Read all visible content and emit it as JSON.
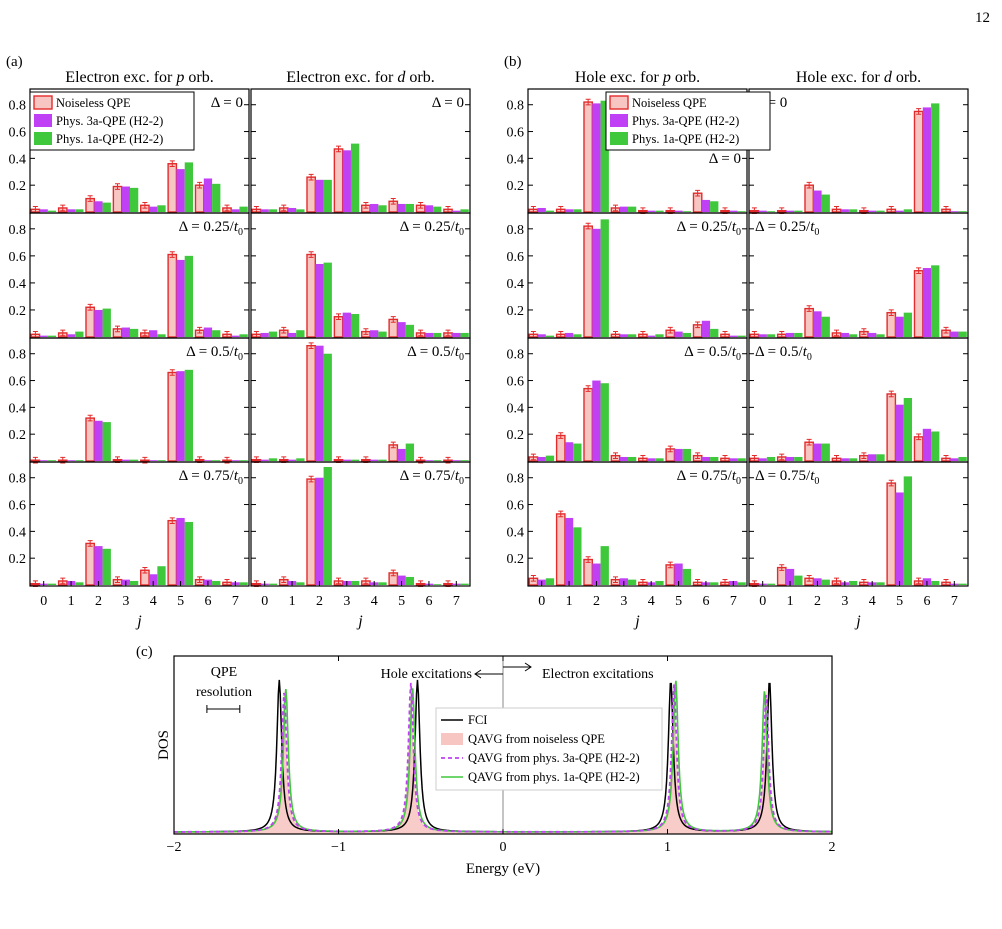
{
  "page_number": "12",
  "panel_letters": {
    "a": "(a)",
    "b": "(b)",
    "c": "(c)"
  },
  "colors": {
    "noiseless_fill": "#f7c6c2",
    "noiseless_edge": "#e32b2b",
    "phys3a": "#c040f5",
    "phys1a": "#3fc83c",
    "fci": "#000000"
  },
  "legend_bar": [
    "Noiseless QPE",
    "Phys. 3a-QPE (H2-2)",
    "Phys. 1a-QPE (H2-2)"
  ],
  "chart_data": [
    {
      "type": "bar",
      "title": "Electron exc. for p orb.",
      "xlabel": "j",
      "categories": [
        "0",
        "1",
        "2",
        "3",
        "4",
        "5",
        "6",
        "7"
      ],
      "ylim": [
        0,
        0.88
      ],
      "yticks": [
        "0.2",
        "0.4",
        "0.6",
        "0.8"
      ],
      "rows": [
        {
          "label": "Δ = 0",
          "series": [
            {
              "name": "Noiseless QPE",
              "values": [
                0.02,
                0.03,
                0.1,
                0.19,
                0.05,
                0.36,
                0.2,
                0.03
              ]
            },
            {
              "name": "Phys. 3a-QPE (H2-2)",
              "values": [
                0.02,
                0.02,
                0.08,
                0.19,
                0.04,
                0.32,
                0.25,
                0.02
              ]
            },
            {
              "name": "Phys. 1a-QPE (H2-2)",
              "values": [
                0.01,
                0.02,
                0.07,
                0.18,
                0.05,
                0.37,
                0.21,
                0.04
              ]
            }
          ]
        },
        {
          "label": "Δ = 0.25/t₀",
          "series": [
            {
              "name": "Noiseless QPE",
              "values": [
                0.02,
                0.03,
                0.22,
                0.06,
                0.03,
                0.61,
                0.05,
                0.02
              ]
            },
            {
              "name": "Phys. 3a-QPE (H2-2)",
              "values": [
                0.01,
                0.02,
                0.2,
                0.07,
                0.05,
                0.57,
                0.07,
                0.01
              ]
            },
            {
              "name": "Phys. 1a-QPE (H2-2)",
              "values": [
                0.01,
                0.04,
                0.21,
                0.06,
                0.02,
                0.6,
                0.05,
                0.02
              ]
            }
          ]
        },
        {
          "label": "Δ = 0.5/t₀",
          "series": [
            {
              "name": "Noiseless QPE",
              "values": [
                0.0,
                0.0,
                0.32,
                0.01,
                0.0,
                0.66,
                0.01,
                0.0
              ]
            },
            {
              "name": "Phys. 3a-QPE (H2-2)",
              "values": [
                0.0,
                0.0,
                0.3,
                0.01,
                0.0,
                0.67,
                0.0,
                0.0
              ]
            },
            {
              "name": "Phys. 1a-QPE (H2-2)",
              "values": [
                0.0,
                0.0,
                0.29,
                0.01,
                0.0,
                0.68,
                0.0,
                0.0
              ]
            }
          ]
        },
        {
          "label": "Δ = 0.75/t₀",
          "series": [
            {
              "name": "Noiseless QPE",
              "values": [
                0.01,
                0.03,
                0.31,
                0.04,
                0.11,
                0.48,
                0.04,
                0.02
              ]
            },
            {
              "name": "Phys. 3a-QPE (H2-2)",
              "values": [
                0.01,
                0.03,
                0.29,
                0.04,
                0.08,
                0.5,
                0.04,
                0.02
              ]
            },
            {
              "name": "Phys. 1a-QPE (H2-2)",
              "values": [
                0.01,
                0.02,
                0.27,
                0.03,
                0.14,
                0.47,
                0.03,
                0.02
              ]
            }
          ]
        }
      ]
    },
    {
      "type": "bar",
      "title": "Electron exc. for d orb.",
      "xlabel": "j",
      "categories": [
        "0",
        "1",
        "2",
        "3",
        "4",
        "5",
        "6",
        "7"
      ],
      "ylim": [
        0,
        0.88
      ],
      "yticks": [
        "0.2",
        "0.4",
        "0.6",
        "0.8"
      ],
      "rows": [
        {
          "label": "Δ = 0",
          "series": [
            {
              "name": "Noiseless QPE",
              "values": [
                0.02,
                0.03,
                0.26,
                0.47,
                0.05,
                0.08,
                0.05,
                0.02
              ]
            },
            {
              "name": "Phys. 3a-QPE (H2-2)",
              "values": [
                0.02,
                0.03,
                0.24,
                0.46,
                0.06,
                0.06,
                0.05,
                0.01
              ]
            },
            {
              "name": "Phys. 1a-QPE (H2-2)",
              "values": [
                0.02,
                0.02,
                0.24,
                0.51,
                0.05,
                0.06,
                0.04,
                0.02
              ]
            }
          ]
        },
        {
          "label": "Δ = 0.25/t₀",
          "series": [
            {
              "name": "Noiseless QPE",
              "values": [
                0.02,
                0.05,
                0.61,
                0.15,
                0.04,
                0.13,
                0.03,
                0.03
              ]
            },
            {
              "name": "Phys. 3a-QPE (H2-2)",
              "values": [
                0.03,
                0.03,
                0.54,
                0.18,
                0.05,
                0.11,
                0.03,
                0.03
              ]
            },
            {
              "name": "Phys. 1a-QPE (H2-2)",
              "values": [
                0.04,
                0.05,
                0.55,
                0.17,
                0.04,
                0.09,
                0.03,
                0.03
              ]
            }
          ]
        },
        {
          "label": "Δ = 0.5/t₀",
          "series": [
            {
              "name": "Noiseless QPE",
              "values": [
                0.01,
                0.01,
                0.86,
                0.01,
                0.01,
                0.12,
                0.0,
                0.0
              ]
            },
            {
              "name": "Phys. 3a-QPE (H2-2)",
              "values": [
                0.01,
                0.01,
                0.86,
                0.01,
                0.01,
                0.09,
                0.0,
                0.0
              ]
            },
            {
              "name": "Phys. 1a-QPE (H2-2)",
              "values": [
                0.02,
                0.02,
                0.8,
                0.01,
                0.01,
                0.13,
                0.0,
                0.0
              ]
            }
          ]
        },
        {
          "label": "Δ = 0.75/t₀",
          "series": [
            {
              "name": "Noiseless QPE",
              "values": [
                0.01,
                0.04,
                0.79,
                0.03,
                0.03,
                0.09,
                0.01,
                0.01
              ]
            },
            {
              "name": "Phys. 3a-QPE (H2-2)",
              "values": [
                0.01,
                0.03,
                0.8,
                0.03,
                0.02,
                0.07,
                0.01,
                0.01
              ]
            },
            {
              "name": "Phys. 1a-QPE (H2-2)",
              "values": [
                0.01,
                0.02,
                0.88,
                0.03,
                0.02,
                0.06,
                0.0,
                0.01
              ]
            }
          ]
        }
      ]
    },
    {
      "type": "bar",
      "title": "Hole exc. for p orb.",
      "xlabel": "j",
      "categories": [
        "0",
        "1",
        "2",
        "3",
        "4",
        "5",
        "6",
        "7"
      ],
      "ylim": [
        0,
        0.88
      ],
      "yticks": [
        "0.2",
        "0.4",
        "0.6",
        "0.8"
      ],
      "rows": [
        {
          "label": "Δ = 0",
          "series": [
            {
              "name": "Noiseless QPE",
              "values": [
                0.02,
                0.02,
                0.82,
                0.03,
                0.01,
                0.01,
                0.14,
                0.01
              ]
            },
            {
              "name": "Phys. 3a-QPE (H2-2)",
              "values": [
                0.03,
                0.02,
                0.81,
                0.04,
                0.01,
                0.01,
                0.09,
                0.01
              ]
            },
            {
              "name": "Phys. 1a-QPE (H2-2)",
              "values": [
                0.01,
                0.02,
                0.83,
                0.04,
                0.01,
                0.0,
                0.08,
                0.0
              ]
            }
          ]
        },
        {
          "label": "Δ = 0.25/t₀",
          "series": [
            {
              "name": "Noiseless QPE",
              "values": [
                0.02,
                0.02,
                0.82,
                0.02,
                0.02,
                0.05,
                0.09,
                0.02
              ]
            },
            {
              "name": "Phys. 3a-QPE (H2-2)",
              "values": [
                0.02,
                0.03,
                0.8,
                0.02,
                0.01,
                0.04,
                0.12,
                0.01
              ]
            },
            {
              "name": "Phys. 1a-QPE (H2-2)",
              "values": [
                0.01,
                0.02,
                0.87,
                0.02,
                0.02,
                0.03,
                0.06,
                0.01
              ]
            }
          ]
        },
        {
          "label": "Δ = 0.5/t₀",
          "series": [
            {
              "name": "Noiseless QPE",
              "values": [
                0.03,
                0.19,
                0.54,
                0.04,
                0.02,
                0.09,
                0.04,
                0.02
              ]
            },
            {
              "name": "Phys. 3a-QPE (H2-2)",
              "values": [
                0.03,
                0.14,
                0.6,
                0.03,
                0.02,
                0.09,
                0.03,
                0.02
              ]
            },
            {
              "name": "Phys. 1a-QPE (H2-2)",
              "values": [
                0.04,
                0.13,
                0.58,
                0.03,
                0.02,
                0.09,
                0.03,
                0.02
              ]
            }
          ]
        },
        {
          "label": "Δ = 0.75/t₀",
          "series": [
            {
              "name": "Noiseless QPE",
              "values": [
                0.05,
                0.53,
                0.19,
                0.04,
                0.02,
                0.15,
                0.02,
                0.02
              ]
            },
            {
              "name": "Phys. 3a-QPE (H2-2)",
              "values": [
                0.04,
                0.5,
                0.16,
                0.05,
                0.02,
                0.16,
                0.02,
                0.03
              ]
            },
            {
              "name": "Phys. 1a-QPE (H2-2)",
              "values": [
                0.05,
                0.43,
                0.29,
                0.04,
                0.03,
                0.12,
                0.02,
                0.02
              ]
            }
          ]
        }
      ]
    },
    {
      "type": "bar",
      "title": "Hole exc. for d orb.",
      "xlabel": "j",
      "categories": [
        "0",
        "1",
        "2",
        "3",
        "4",
        "5",
        "6",
        "7"
      ],
      "ylim": [
        0,
        0.88
      ],
      "yticks": [
        "0.2",
        "0.4",
        "0.6",
        "0.8"
      ],
      "rows": [
        {
          "label": "Δ = 0",
          "series": [
            {
              "name": "Noiseless QPE",
              "values": [
                0.01,
                0.01,
                0.2,
                0.02,
                0.01,
                0.02,
                0.75,
                0.02
              ]
            },
            {
              "name": "Phys. 3a-QPE (H2-2)",
              "values": [
                0.01,
                0.01,
                0.16,
                0.02,
                0.01,
                0.01,
                0.78,
                0.0
              ]
            },
            {
              "name": "Phys. 1a-QPE (H2-2)",
              "values": [
                0.0,
                0.01,
                0.13,
                0.02,
                0.01,
                0.02,
                0.81,
                0.0
              ]
            }
          ]
        },
        {
          "label": "Δ = 0.25/t₀",
          "series": [
            {
              "name": "Noiseless QPE",
              "values": [
                0.02,
                0.02,
                0.21,
                0.03,
                0.04,
                0.18,
                0.49,
                0.05
              ]
            },
            {
              "name": "Phys. 3a-QPE (H2-2)",
              "values": [
                0.02,
                0.03,
                0.19,
                0.03,
                0.03,
                0.15,
                0.51,
                0.04
              ]
            },
            {
              "name": "Phys. 1a-QPE (H2-2)",
              "values": [
                0.02,
                0.03,
                0.15,
                0.02,
                0.02,
                0.18,
                0.53,
                0.04
              ]
            }
          ]
        },
        {
          "label": "Δ = 0.5/t₀",
          "series": [
            {
              "name": "Noiseless QPE",
              "values": [
                0.02,
                0.03,
                0.14,
                0.02,
                0.04,
                0.5,
                0.18,
                0.02
              ]
            },
            {
              "name": "Phys. 3a-QPE (H2-2)",
              "values": [
                0.02,
                0.03,
                0.13,
                0.02,
                0.05,
                0.42,
                0.24,
                0.02
              ]
            },
            {
              "name": "Phys. 1a-QPE (H2-2)",
              "values": [
                0.03,
                0.03,
                0.13,
                0.02,
                0.05,
                0.47,
                0.22,
                0.03
              ]
            }
          ]
        },
        {
          "label": "Δ = 0.75/t₀",
          "series": [
            {
              "name": "Noiseless QPE",
              "values": [
                0.01,
                0.13,
                0.05,
                0.03,
                0.02,
                0.76,
                0.03,
                0.02
              ]
            },
            {
              "name": "Phys. 3a-QPE (H2-2)",
              "values": [
                0.01,
                0.12,
                0.05,
                0.02,
                0.02,
                0.69,
                0.05,
                0.01
              ]
            },
            {
              "name": "Phys. 1a-QPE (H2-2)",
              "values": [
                0.01,
                0.07,
                0.04,
                0.03,
                0.02,
                0.81,
                0.03,
                0.01
              ]
            }
          ]
        }
      ]
    },
    {
      "type": "line",
      "xlabel": "Energy (eV)",
      "ylabel": "DOS",
      "xlim": [
        -2,
        2
      ],
      "xticks": [
        "−2",
        "−1",
        "0",
        "1",
        "2"
      ],
      "annotations": {
        "qpe_resolution": [
          "QPE",
          "resolution"
        ],
        "hole": "Hole excitations",
        "electron": "Electron excitations"
      },
      "qpe_resolution_width_eV": 0.2,
      "peak_width_eV": 0.018,
      "series": [
        {
          "name": "FCI",
          "style": "solid-black",
          "peaks": [
            [
              -1.36,
              1.0
            ],
            [
              -0.52,
              1.0
            ],
            [
              1.02,
              1.0
            ],
            [
              1.62,
              1.0
            ]
          ]
        },
        {
          "name": "QAVG from noiseless QPE",
          "style": "filled-pink",
          "peaks": [
            [
              -1.33,
              0.95
            ],
            [
              -0.56,
              0.94
            ],
            [
              1.04,
              0.99
            ],
            [
              1.6,
              0.95
            ]
          ]
        },
        {
          "name": "QAVG from phys. 3a-QPE (H2-2)",
          "style": "dashed-magenta",
          "peaks": [
            [
              -1.33,
              0.92
            ],
            [
              -0.56,
              0.98
            ],
            [
              1.04,
              0.97
            ],
            [
              1.6,
              0.9
            ]
          ]
        },
        {
          "name": "QAVG from phys. 1a-QPE (H2-2)",
          "style": "solid-green",
          "peaks": [
            [
              -1.32,
              0.94
            ],
            [
              -0.55,
              0.95
            ],
            [
              1.05,
              1.0
            ],
            [
              1.59,
              0.93
            ]
          ]
        }
      ]
    }
  ]
}
